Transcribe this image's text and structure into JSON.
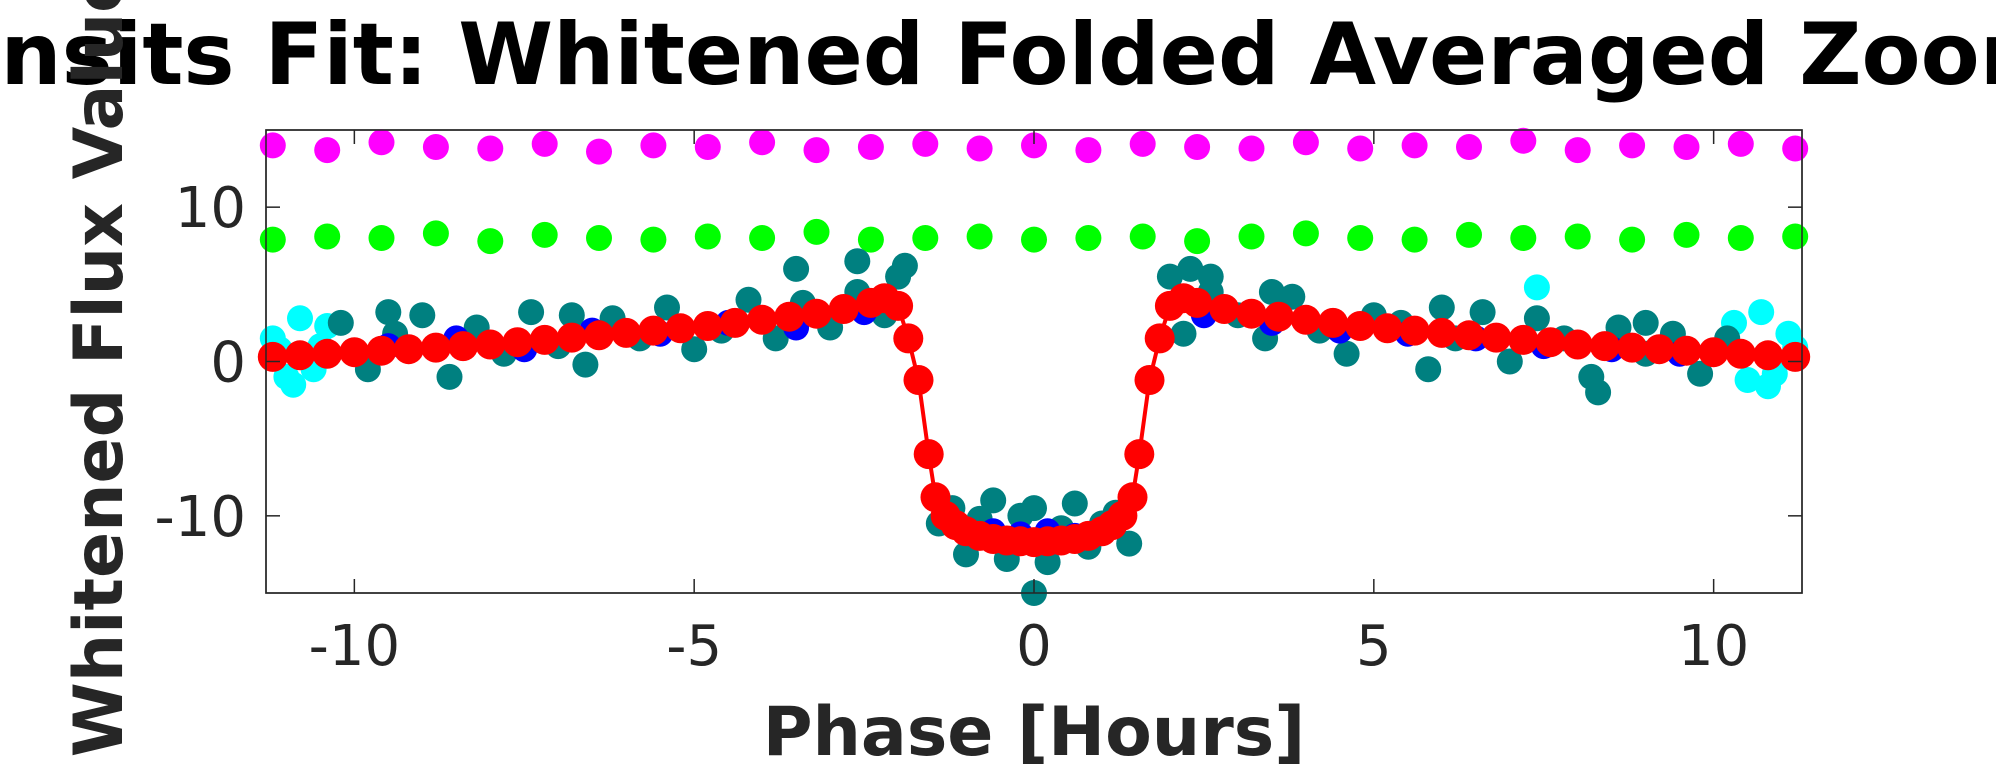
{
  "chart_data": {
    "type": "scatter",
    "title": "Transits Fit: Whitened Folded Averaged Zoomed",
    "xlabel": "Phase [Hours]",
    "ylabel": "Whitened Flux Value",
    "xlim": [
      -11.3,
      11.3
    ],
    "ylim": [
      -15,
      15
    ],
    "x_ticks": [
      -10,
      -5,
      0,
      5,
      10
    ],
    "x_tick_labels": [
      "-10",
      "-5",
      "0",
      "5",
      "10"
    ],
    "y_ticks": [
      -10,
      0,
      10
    ],
    "y_tick_labels": [
      "-10",
      "0",
      "10"
    ],
    "grid": false,
    "legend": "none",
    "colors": {
      "magenta": "#ff00ff",
      "green": "#00ff00",
      "cyan": "#00ffff",
      "teal": "#008080",
      "blue": "#0000ff",
      "red": "#ff0000",
      "axis": "#262626"
    },
    "series": [
      {
        "color": "#ff00ff",
        "style": "scatter",
        "x": [
          -11.2,
          -10.4,
          -9.6,
          -8.8,
          -8.0,
          -7.2,
          -6.4,
          -5.6,
          -4.8,
          -4.0,
          -3.2,
          -2.4,
          -1.6,
          -0.8,
          0.0,
          0.8,
          1.6,
          2.4,
          3.2,
          4.0,
          4.8,
          5.6,
          6.4,
          7.2,
          8.0,
          8.8,
          9.6,
          10.4,
          11.2
        ],
        "y": [
          14.0,
          13.7,
          14.2,
          13.9,
          13.8,
          14.1,
          13.6,
          14.0,
          13.9,
          14.2,
          13.7,
          13.9,
          14.1,
          13.8,
          14.0,
          13.7,
          14.1,
          13.9,
          13.8,
          14.2,
          13.8,
          14.0,
          13.9,
          14.3,
          13.7,
          14.0,
          13.9,
          14.1,
          13.8
        ]
      },
      {
        "color": "#00ff00",
        "style": "scatter",
        "x": [
          -11.2,
          -10.4,
          -9.6,
          -8.8,
          -8.0,
          -7.2,
          -6.4,
          -5.6,
          -4.8,
          -4.0,
          -3.2,
          -2.4,
          -1.6,
          -0.8,
          0.0,
          0.8,
          1.6,
          2.4,
          3.2,
          4.0,
          4.8,
          5.6,
          6.4,
          7.2,
          8.0,
          8.8,
          9.6,
          10.4,
          11.2
        ],
        "y": [
          7.9,
          8.1,
          8.0,
          8.3,
          7.8,
          8.2,
          8.0,
          7.9,
          8.1,
          8.0,
          8.4,
          7.9,
          8.0,
          8.1,
          7.9,
          8.0,
          8.1,
          7.8,
          8.1,
          8.3,
          8.0,
          7.9,
          8.2,
          8.0,
          8.1,
          7.9,
          8.2,
          8.0,
          8.1
        ]
      },
      {
        "color": "#00ffff",
        "style": "scatter",
        "x": [
          -11.2,
          -11.0,
          -10.8,
          -10.6,
          -10.4,
          -11.1,
          -10.9,
          -10.5,
          10.3,
          10.5,
          10.7,
          10.9,
          11.1,
          10.4,
          10.8,
          11.2,
          7.4
        ],
        "y": [
          1.5,
          -1.0,
          2.8,
          -0.5,
          2.3,
          0.8,
          -1.5,
          1.0,
          2.5,
          -1.2,
          3.2,
          -0.8,
          1.8,
          0.5,
          -1.6,
          0.9,
          4.8
        ]
      },
      {
        "color": "#008080",
        "style": "scatter",
        "x": [
          -10.2,
          -9.8,
          -9.4,
          -9.0,
          -8.6,
          -8.2,
          -7.8,
          -7.4,
          -7.0,
          -6.6,
          -6.2,
          -5.8,
          -5.4,
          -5.0,
          -4.6,
          -4.2,
          -3.8,
          -3.4,
          -3.0,
          -2.6,
          -2.2,
          -2.0,
          -1.4,
          -1.2,
          -1.0,
          -0.8,
          -0.6,
          -0.4,
          -0.2,
          0.0,
          0.2,
          0.4,
          0.6,
          0.8,
          1.0,
          1.2,
          1.4,
          2.0,
          2.2,
          2.6,
          3.0,
          3.4,
          3.8,
          4.2,
          4.6,
          5.0,
          5.4,
          5.8,
          6.2,
          6.6,
          7.0,
          7.4,
          7.8,
          8.2,
          8.6,
          9.0,
          9.4,
          9.8,
          10.2,
          -3.5,
          -2.6,
          -1.9,
          2.3,
          2.6,
          3.5,
          -6.8,
          6.0,
          8.3,
          -9.5,
          9.0,
          0.0
        ],
        "y": [
          2.5,
          -0.5,
          1.8,
          3.0,
          -1.0,
          2.2,
          0.5,
          3.2,
          1.0,
          -0.2,
          2.8,
          1.5,
          3.5,
          0.8,
          2.0,
          4.0,
          1.5,
          3.8,
          2.2,
          4.5,
          3.0,
          5.5,
          -10.5,
          -9.5,
          -12.5,
          -10.2,
          -9.0,
          -12.8,
          -10.0,
          -9.5,
          -13.0,
          -10.8,
          -9.2,
          -12.0,
          -10.5,
          -9.8,
          -11.8,
          5.5,
          1.8,
          4.5,
          3.0,
          1.5,
          4.2,
          2.0,
          0.5,
          3.0,
          2.5,
          -0.5,
          1.5,
          3.2,
          0.0,
          2.8,
          1.5,
          -1.0,
          2.2,
          0.5,
          1.8,
          -0.8,
          1.5,
          6.0,
          6.5,
          6.2,
          6.0,
          5.5,
          4.5,
          3.0,
          3.5,
          -2.0,
          3.2,
          2.5,
          -15.0
        ]
      },
      {
        "color": "#0000ff",
        "style": "scatter",
        "x": [
          -9.5,
          -8.5,
          -7.5,
          -6.5,
          -5.5,
          -4.5,
          -3.5,
          -2.5,
          -0.6,
          -0.2,
          0.2,
          0.6,
          2.5,
          3.5,
          4.5,
          5.5,
          6.5,
          7.5,
          8.5,
          9.5
        ],
        "y": [
          1.0,
          1.5,
          0.8,
          2.0,
          1.8,
          2.5,
          2.2,
          3.2,
          -11.0,
          -11.2,
          -11.0,
          -11.3,
          3.0,
          2.5,
          2.0,
          1.8,
          1.5,
          1.0,
          0.8,
          0.5
        ]
      },
      {
        "color": "#ff0000",
        "style": "line-marker",
        "x": [
          -11.2,
          -10.8,
          -10.4,
          -10.0,
          -9.6,
          -9.2,
          -8.8,
          -8.4,
          -8.0,
          -7.6,
          -7.2,
          -6.8,
          -6.4,
          -6.0,
          -5.6,
          -5.2,
          -4.8,
          -4.4,
          -4.0,
          -3.6,
          -3.2,
          -2.8,
          -2.4,
          -2.2,
          -2.0,
          -1.85,
          -1.7,
          -1.55,
          -1.45,
          -1.3,
          -1.15,
          -1.0,
          -0.8,
          -0.6,
          -0.4,
          -0.2,
          0.0,
          0.2,
          0.4,
          0.6,
          0.8,
          1.0,
          1.15,
          1.3,
          1.45,
          1.55,
          1.7,
          1.85,
          2.0,
          2.2,
          2.4,
          2.8,
          3.2,
          3.6,
          4.0,
          4.4,
          4.8,
          5.2,
          5.6,
          6.0,
          6.4,
          6.8,
          7.2,
          7.6,
          8.0,
          8.4,
          8.8,
          9.2,
          9.6,
          10.0,
          10.4,
          10.8,
          11.2
        ],
        "y": [
          0.3,
          0.4,
          0.5,
          0.6,
          0.7,
          0.8,
          0.9,
          1.0,
          1.1,
          1.25,
          1.4,
          1.55,
          1.7,
          1.85,
          2.0,
          2.15,
          2.3,
          2.5,
          2.7,
          2.9,
          3.1,
          3.4,
          3.8,
          4.1,
          3.6,
          1.5,
          -1.2,
          -6.0,
          -8.8,
          -10.0,
          -10.6,
          -11.0,
          -11.3,
          -11.5,
          -11.6,
          -11.65,
          -11.7,
          -11.65,
          -11.6,
          -11.5,
          -11.3,
          -11.0,
          -10.6,
          -10.0,
          -8.8,
          -6.0,
          -1.2,
          1.5,
          3.6,
          4.1,
          3.8,
          3.4,
          3.1,
          2.9,
          2.7,
          2.5,
          2.3,
          2.15,
          2.0,
          1.85,
          1.7,
          1.55,
          1.4,
          1.25,
          1.1,
          1.0,
          0.9,
          0.8,
          0.7,
          0.6,
          0.5,
          0.4,
          0.3
        ]
      }
    ]
  }
}
